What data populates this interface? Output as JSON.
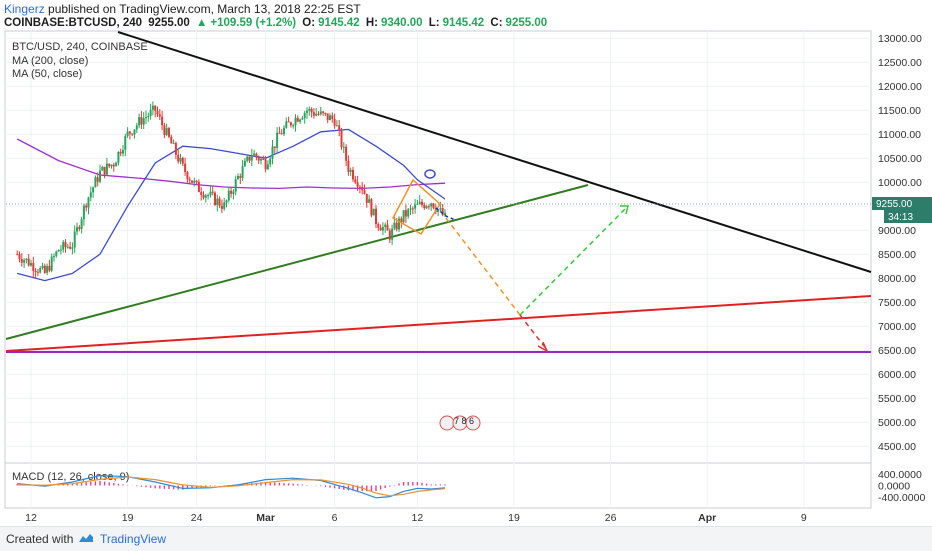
{
  "header": {
    "author": "Kingerz",
    "published": "published on TradingView.com, March 13, 2018 22:25 EST",
    "symbol": "COINBASE:BTCUSD, 240",
    "last": "9255.00",
    "change_arrow": "▲",
    "change": "+109.59 (+1.2%)",
    "o_label": "O:",
    "o": "9145.42",
    "h_label": "H:",
    "h": "9340.00",
    "l_label": "L:",
    "l": "9145.42",
    "c_label": "C:",
    "c": "9255.00"
  },
  "legend": {
    "symbol": "BTC/USD, 240, COINBASE",
    "ma200": "MA (200, close)",
    "ma50": "MA (50, close)"
  },
  "macd_label": "MACD (12, 26, close, 9)",
  "event_badge": "7 8 6",
  "price_tag": "9255.00",
  "countdown": "34:13",
  "footer": {
    "created": "Created with",
    "brand": "TradingView"
  },
  "colors": {
    "up": "#26a65b",
    "down": "#e53935",
    "ma200": "#a52bd6",
    "ma50": "#3b4bd1",
    "trend_black": "#111111",
    "trend_green": "#2f7d1e",
    "trend_red": "#e32020",
    "support_purple": "#9b21c9",
    "proj_orange": "#f0912a",
    "proj_green": "#38c838",
    "proj_red": "#e03030"
  },
  "chart_data": [
    {
      "type": "candlestick",
      "title": "BTC/USD, 240, COINBASE",
      "y_axis": {
        "ticks": [
          "13000.00",
          "12500.00",
          "12000.00",
          "11500.00",
          "11000.00",
          "10500.00",
          "10000.00",
          "9500.00",
          "9000.00",
          "8500.00",
          "8000.00",
          "7500.00",
          "7000.00",
          "6500.00",
          "6000.00",
          "5500.00",
          "5000.00",
          "4500.00"
        ],
        "range": [
          4150,
          13150
        ]
      },
      "x_axis": {
        "ticks": [
          "12",
          "19",
          "24",
          "Mar",
          "6",
          "12",
          "19",
          "26",
          "Apr",
          "9"
        ],
        "tick_days": [
          0,
          7,
          12,
          17,
          22,
          28,
          35,
          42,
          49,
          56
        ],
        "start_label": "Feb 12 2018"
      },
      "series": [
        {
          "name": "MA (200, close)",
          "type": "line",
          "x": [
            -1,
            2,
            5,
            8,
            10,
            12,
            14,
            16,
            18,
            20,
            22,
            24,
            26,
            28,
            30
          ],
          "y": [
            10900,
            10450,
            10150,
            10080,
            10020,
            9950,
            9900,
            9880,
            9870,
            9900,
            9880,
            9870,
            9900,
            9950,
            9980
          ]
        },
        {
          "name": "MA (50, close)",
          "type": "line",
          "x": [
            -1,
            1,
            3,
            5,
            7,
            9,
            11,
            13,
            15,
            17,
            19,
            21,
            23,
            25,
            27,
            28,
            29,
            30
          ],
          "y": [
            8100,
            7950,
            8100,
            8500,
            9500,
            10400,
            10750,
            10700,
            10600,
            10500,
            10750,
            11050,
            11100,
            10750,
            10350,
            10050,
            9850,
            9650
          ]
        },
        {
          "name": "Price",
          "type": "candlestick",
          "x": [
            -1,
            0,
            1,
            2,
            3,
            4,
            5,
            6,
            7,
            8,
            9,
            10,
            11,
            12,
            13,
            14,
            15,
            16,
            17,
            18,
            19,
            20,
            21,
            22,
            23,
            24,
            25,
            26,
            27,
            28,
            29,
            30
          ],
          "y": [
            8500,
            8300,
            8100,
            8600,
            8700,
            9600,
            10200,
            10400,
            11000,
            11300,
            11500,
            10900,
            10300,
            9900,
            9700,
            9500,
            10100,
            10600,
            10400,
            11000,
            11300,
            11500,
            11400,
            11300,
            10300,
            9900,
            9200,
            8900,
            9300,
            9500,
            9600,
            9255
          ]
        }
      ]
    },
    {
      "type": "macd",
      "title": "MACD (12, 26, close, 9)",
      "y_axis": {
        "ticks": [
          "400.0000",
          "0.0000",
          "-400.0000"
        ],
        "range": [
          -700,
          700
        ]
      },
      "macd": {
        "x": [
          -1,
          1,
          3,
          5,
          7,
          9,
          11,
          13,
          15,
          17,
          19,
          21,
          23,
          24,
          25,
          26,
          27,
          28,
          29,
          30
        ],
        "y": [
          60,
          -20,
          120,
          340,
          300,
          120,
          -100,
          -80,
          20,
          200,
          250,
          170,
          -100,
          -250,
          -420,
          -380,
          -200,
          -100,
          -120,
          -80
        ]
      },
      "signal": {
        "x": [
          -1,
          1,
          3,
          5,
          7,
          9,
          11,
          13,
          15,
          17,
          19,
          21,
          23,
          24,
          25,
          26,
          27,
          28,
          29,
          30
        ],
        "y": [
          20,
          10,
          60,
          210,
          290,
          200,
          20,
          -60,
          -10,
          100,
          200,
          190,
          40,
          -90,
          -260,
          -350,
          -300,
          -200,
          -150,
          -110
        ]
      }
    }
  ]
}
